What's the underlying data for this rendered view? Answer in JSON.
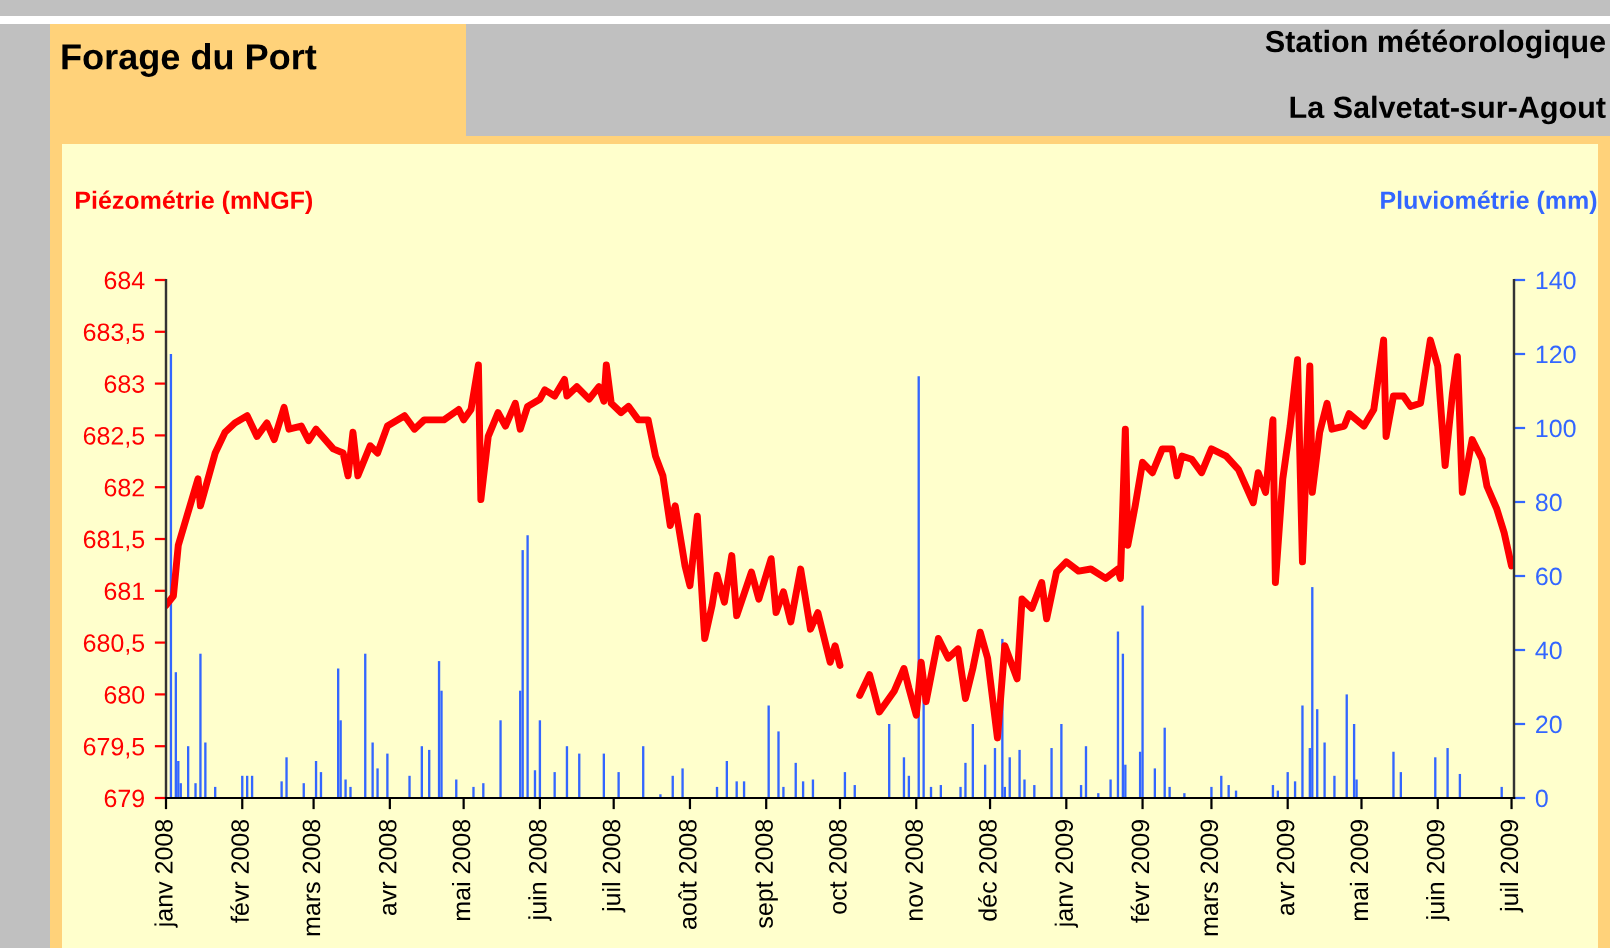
{
  "chart_data": {
    "type": "line",
    "title": "Forage du Port",
    "subtitle": "Station météorologique",
    "annotations": [
      "La Salvetat-sur-Agout"
    ],
    "ylabel": "Piézométrie (mNGF)",
    "y2label": "Pluviométrie (mm)",
    "xlim": [
      "2008-01-01",
      "2009-07-02"
    ],
    "xticks": [
      {
        "value": "2008-01-01",
        "label": "janv 2008"
      },
      {
        "value": "2008-02-01",
        "label": "févr 2008"
      },
      {
        "value": "2008-03-01",
        "label": "mars 2008"
      },
      {
        "value": "2008-04-01",
        "label": "avr 2008"
      },
      {
        "value": "2008-05-01",
        "label": "mai 2008"
      },
      {
        "value": "2008-06-01",
        "label": "juin 2008"
      },
      {
        "value": "2008-07-01",
        "label": "juil 2008"
      },
      {
        "value": "2008-08-01",
        "label": "août 2008"
      },
      {
        "value": "2008-09-01",
        "label": "sept 2008"
      },
      {
        "value": "2008-10-01",
        "label": "oct 2008"
      },
      {
        "value": "2008-11-01",
        "label": "nov 2008"
      },
      {
        "value": "2008-12-01",
        "label": "déc 2008"
      },
      {
        "value": "2009-01-01",
        "label": "janv 2009"
      },
      {
        "value": "2009-02-01",
        "label": "févr 2009"
      },
      {
        "value": "2009-03-01",
        "label": "mars 2009"
      },
      {
        "value": "2009-04-01",
        "label": "avr 2009"
      },
      {
        "value": "2009-05-01",
        "label": "mai 2009"
      },
      {
        "value": "2009-06-01",
        "label": "juin 2009"
      },
      {
        "value": "2009-07-01",
        "label": "juil 2009"
      }
    ],
    "ylim": [
      679,
      684
    ],
    "yticks": [
      679,
      {
        "value": 679.5,
        "label": "679,5"
      },
      680,
      {
        "value": 680.5,
        "label": "680,5"
      },
      681,
      {
        "value": 681.5,
        "label": "681,5"
      },
      682,
      {
        "value": 682.5,
        "label": "682,5"
      },
      683,
      {
        "value": 683.5,
        "label": "683,5"
      },
      684
    ],
    "y2lim": [
      0,
      140
    ],
    "y2ticks": [
      0,
      20,
      40,
      60,
      80,
      100,
      120,
      140
    ],
    "series": [
      {
        "type": "bar",
        "axis": "y2",
        "color": "#3366ff",
        "x": [
          "2008-01-03",
          "2008-01-05",
          "2008-01-06",
          "2008-01-07",
          "2008-01-10",
          "2008-01-13",
          "2008-01-15",
          "2008-01-17",
          "2008-01-21",
          "2008-02-01",
          "2008-02-03",
          "2008-02-05",
          "2008-02-17",
          "2008-02-19",
          "2008-02-26",
          "2008-03-02",
          "2008-03-04",
          "2008-03-11",
          "2008-03-12",
          "2008-03-14",
          "2008-03-16",
          "2008-03-22",
          "2008-03-25",
          "2008-03-27",
          "2008-03-31",
          "2008-04-09",
          "2008-04-14",
          "2008-04-17",
          "2008-04-21",
          "2008-04-22",
          "2008-04-28",
          "2008-05-05",
          "2008-05-09",
          "2008-05-16",
          "2008-05-24",
          "2008-05-25",
          "2008-05-27",
          "2008-05-30",
          "2008-06-01",
          "2008-06-07",
          "2008-06-12",
          "2008-06-17",
          "2008-06-27",
          "2008-07-03",
          "2008-07-13",
          "2008-07-20",
          "2008-07-25",
          "2008-07-29",
          "2008-08-12",
          "2008-08-16",
          "2008-08-20",
          "2008-08-23",
          "2008-09-02",
          "2008-09-06",
          "2008-09-08",
          "2008-09-13",
          "2008-09-16",
          "2008-09-20",
          "2008-10-03",
          "2008-10-07",
          "2008-10-21",
          "2008-10-27",
          "2008-10-29",
          "2008-11-02",
          "2008-11-04",
          "2008-11-07",
          "2008-11-11",
          "2008-11-19",
          "2008-11-21",
          "2008-11-24",
          "2008-11-29",
          "2008-12-03",
          "2008-12-06",
          "2008-12-07",
          "2008-12-09",
          "2008-12-13",
          "2008-12-15",
          "2008-12-19",
          "2008-12-26",
          "2008-12-30",
          "2009-01-07",
          "2009-01-09",
          "2009-01-14",
          "2009-01-19",
          "2009-01-22",
          "2009-01-24",
          "2009-01-25",
          "2009-01-31",
          "2009-02-01",
          "2009-02-06",
          "2009-02-10",
          "2009-02-12",
          "2009-02-18",
          "2009-03-01",
          "2009-03-05",
          "2009-03-08",
          "2009-03-11",
          "2009-03-26",
          "2009-03-28",
          "2009-04-01",
          "2009-04-04",
          "2009-04-07",
          "2009-04-10",
          "2009-04-11",
          "2009-04-13",
          "2009-04-16",
          "2009-04-20",
          "2009-04-25",
          "2009-04-28",
          "2009-04-29",
          "2009-05-14",
          "2009-05-17",
          "2009-05-31",
          "2009-06-05",
          "2009-06-10",
          "2009-06-27"
        ],
        "values": [
          120,
          34,
          10,
          4,
          14,
          4,
          39,
          15,
          3,
          6,
          6,
          6,
          4.5,
          11,
          4,
          10,
          7,
          35,
          21,
          5,
          3,
          39,
          15,
          8,
          12,
          6,
          14,
          13,
          37,
          29,
          5,
          3,
          4,
          21,
          29,
          67,
          71,
          7.5,
          21,
          7,
          14,
          12,
          12,
          7,
          14,
          1,
          6,
          8,
          3,
          10,
          4.5,
          4.5,
          25,
          18,
          3,
          9.5,
          4.5,
          5,
          7,
          3.5,
          20,
          11,
          6,
          114,
          27,
          3,
          3.5,
          3,
          9.5,
          20,
          9,
          13.5,
          43,
          3,
          11,
          13,
          5,
          3.5,
          13.5,
          20,
          3.5,
          14,
          1.3,
          5,
          45,
          39,
          9,
          12.5,
          52,
          8,
          19,
          3,
          1.3,
          3,
          6,
          3.5,
          2,
          3.5,
          2,
          7,
          4.5,
          25,
          13.5,
          57,
          24,
          15,
          6,
          28,
          20,
          5,
          12.5,
          7,
          11,
          13.5,
          6.5,
          3
        ]
      },
      {
        "axis": "y",
        "color": "#ff0000",
        "x": [
          "2008-01-01",
          "2008-01-04",
          "2008-01-06",
          "2008-01-10",
          "2008-01-14",
          "2008-01-15",
          "2008-01-21",
          "2008-01-25",
          "2008-01-29",
          "2008-02-03",
          "2008-02-07",
          "2008-02-11",
          "2008-02-14",
          "2008-02-18",
          "2008-02-20",
          "2008-02-25",
          "2008-02-28",
          "2008-03-02",
          "2008-03-09",
          "2008-03-13",
          "2008-03-15",
          "2008-03-17",
          "2008-03-19",
          "2008-03-24",
          "2008-03-27",
          "2008-03-31",
          "2008-04-07",
          "2008-04-11",
          "2008-04-15",
          "2008-04-23",
          "2008-04-29",
          "2008-05-01",
          "2008-05-04",
          "2008-05-07",
          "2008-05-08",
          "2008-05-11",
          "2008-05-15",
          "2008-05-18",
          "2008-05-22",
          "2008-05-24",
          "2008-05-27",
          "2008-06-01",
          "2008-06-03",
          "2008-06-07",
          "2008-06-11",
          "2008-06-12",
          "2008-06-16",
          "2008-06-21",
          "2008-06-25",
          "2008-06-27",
          "2008-06-28",
          "2008-06-30",
          "2008-07-04",
          "2008-07-07",
          "2008-07-11",
          "2008-07-15",
          "2008-07-18",
          "2008-07-21",
          "2008-07-24",
          "2008-07-26",
          "2008-07-30",
          "2008-08-01",
          "2008-08-04",
          "2008-08-07",
          "2008-08-10",
          "2008-08-12",
          "2008-08-15",
          "2008-08-18",
          "2008-08-20",
          "2008-08-26",
          "2008-08-29",
          "2008-09-03",
          "2008-09-05",
          "2008-09-08",
          "2008-09-11",
          "2008-09-15",
          "2008-09-19",
          "2008-09-22",
          "2008-09-27",
          "2008-09-29",
          "2008-10-01",
          "2008-10-05",
          "2008-10-09",
          "2008-10-13",
          "2008-10-17",
          "2008-10-23",
          "2008-10-27",
          "2008-10-29",
          "2008-11-01",
          "2008-11-03",
          "2008-11-05",
          "2008-11-10",
          "2008-11-14",
          "2008-11-18",
          "2008-11-21",
          "2008-11-24",
          "2008-11-27",
          "2008-11-30",
          "2008-12-04",
          "2008-12-07",
          "2008-12-12",
          "2008-12-14",
          "2008-12-18",
          "2008-12-22",
          "2008-12-24",
          "2008-12-28",
          "2009-01-01",
          "2009-01-06",
          "2009-01-11",
          "2009-01-17",
          "2009-01-22",
          "2009-01-23",
          "2009-01-25",
          "2009-01-26",
          "2009-01-29",
          "2009-02-01",
          "2009-02-05",
          "2009-02-09",
          "2009-02-13",
          "2009-02-15",
          "2009-02-17",
          "2009-02-21",
          "2009-02-25",
          "2009-03-01",
          "2009-03-07",
          "2009-03-12",
          "2009-03-18",
          "2009-03-20",
          "2009-03-23",
          "2009-03-26",
          "2009-03-27",
          "2009-03-30",
          "2009-04-02",
          "2009-04-05",
          "2009-04-07",
          "2009-04-10",
          "2009-04-11",
          "2009-04-14",
          "2009-04-17",
          "2009-04-19",
          "2009-04-24",
          "2009-04-26",
          "2009-05-02",
          "2009-05-06",
          "2009-05-10",
          "2009-05-11",
          "2009-05-14",
          "2009-05-18",
          "2009-05-21",
          "2009-05-25",
          "2009-05-29",
          "2009-06-01",
          "2009-06-04",
          "2009-06-07",
          "2009-06-09",
          "2009-06-11",
          "2009-06-15",
          "2009-06-19",
          "2009-06-21",
          "2009-06-25",
          "2009-06-28",
          "2009-07-01"
        ],
        "values": [
          680.86,
          680.95,
          681.44,
          681.76,
          682.08,
          681.82,
          682.33,
          682.53,
          682.62,
          682.69,
          682.49,
          682.62,
          682.46,
          682.77,
          682.56,
          682.59,
          682.45,
          682.56,
          682.37,
          682.33,
          682.11,
          682.53,
          682.11,
          682.4,
          682.33,
          682.59,
          682.69,
          682.56,
          682.65,
          682.65,
          682.75,
          682.65,
          682.75,
          683.18,
          681.88,
          682.49,
          682.72,
          682.59,
          682.81,
          682.56,
          682.78,
          682.85,
          682.94,
          682.88,
          683.04,
          682.88,
          682.97,
          682.85,
          682.97,
          682.83,
          683.18,
          682.81,
          682.72,
          682.78,
          682.65,
          682.65,
          682.3,
          682.11,
          681.63,
          681.82,
          681.24,
          681.05,
          681.72,
          680.54,
          680.86,
          681.15,
          680.89,
          681.34,
          680.76,
          681.18,
          680.92,
          681.31,
          680.79,
          680.99,
          680.7,
          681.21,
          680.63,
          680.79,
          680.31,
          680.47,
          680.28,
          null,
          679.99,
          680.19,
          679.83,
          680.03,
          680.25,
          680.06,
          679.8,
          680.31,
          679.93,
          680.54,
          680.35,
          680.44,
          679.96,
          680.25,
          680.6,
          680.35,
          679.58,
          680.47,
          680.15,
          680.92,
          680.83,
          681.08,
          680.73,
          681.18,
          681.28,
          681.19,
          681.21,
          681.12,
          681.21,
          681.12,
          682.56,
          681.44,
          681.82,
          682.24,
          682.14,
          682.37,
          682.37,
          682.11,
          682.3,
          682.27,
          682.14,
          682.37,
          682.3,
          682.17,
          681.85,
          682.14,
          681.95,
          682.65,
          681.08,
          682.08,
          682.59,
          683.23,
          681.28,
          683.17,
          681.95,
          682.53,
          682.81,
          682.56,
          682.59,
          682.71,
          682.59,
          682.75,
          683.42,
          682.49,
          682.88,
          682.88,
          682.78,
          682.81,
          683.42,
          683.17,
          682.21,
          682.91,
          683.26,
          681.95,
          682.46,
          682.27,
          682.01,
          681.79,
          681.56,
          681.24
        ]
      }
    ]
  }
}
